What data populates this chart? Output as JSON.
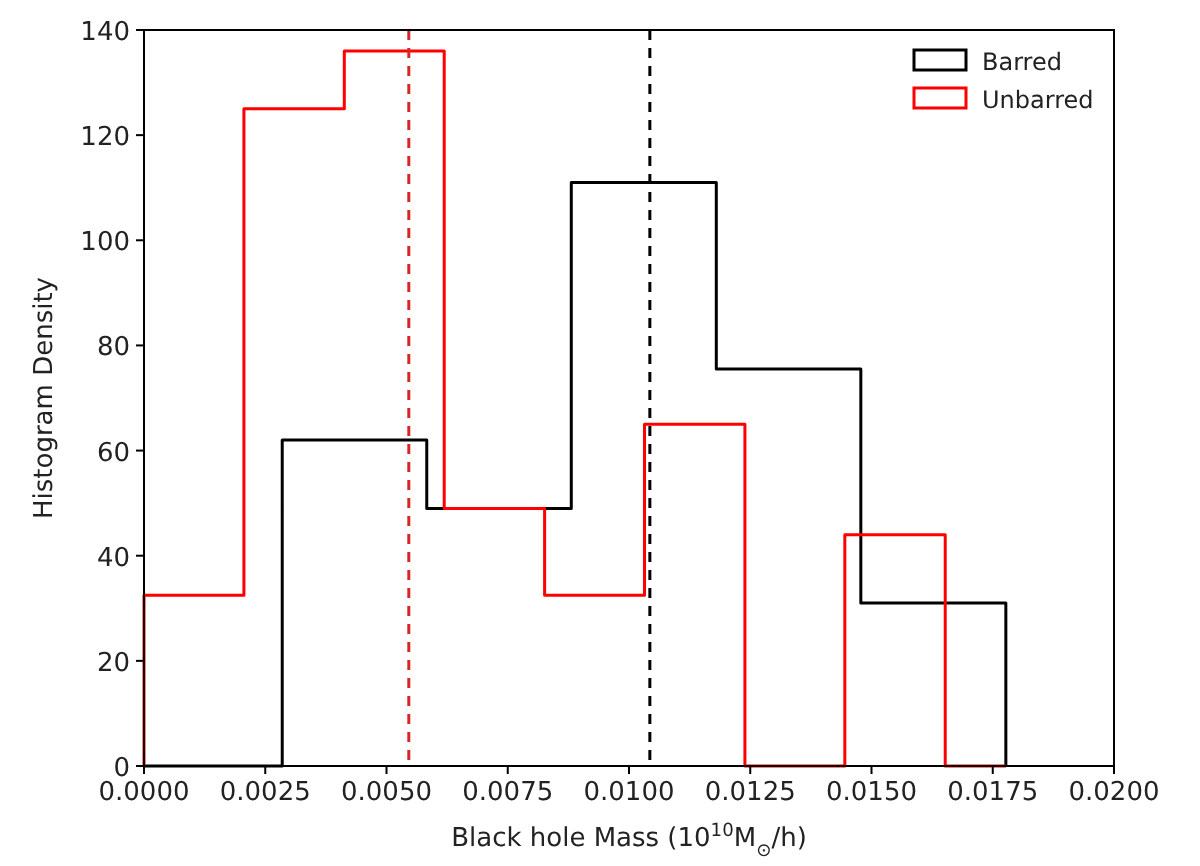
{
  "chart_data": {
    "type": "histogram",
    "xlabel": "Black hole Mass (10$^{10}$M$_{⊙}$/h)",
    "ylabel": "Histogram Density",
    "xlim": [
      0,
      0.02
    ],
    "ylim": [
      0,
      140
    ],
    "xticks": [
      {
        "value": 0,
        "label": "0.0000"
      },
      {
        "value": 0.0025,
        "label": "0.0025"
      },
      {
        "value": 0.005,
        "label": "0.0050"
      },
      {
        "value": 0.0075,
        "label": "0.0075"
      },
      {
        "value": 0.01,
        "label": "0.0100"
      },
      {
        "value": 0.0125,
        "label": "0.0125"
      },
      {
        "value": 0.015,
        "label": "0.0150"
      },
      {
        "value": 0.0175,
        "label": "0.0175"
      },
      {
        "value": 0.02,
        "label": "0.0200"
      }
    ],
    "yticks": [
      0,
      20,
      40,
      60,
      80,
      100,
      120,
      140
    ],
    "legend": "top right",
    "grid": false,
    "series": [
      {
        "name": "Barred",
        "color": "#000000",
        "values": [
          0,
          0,
          62,
          62,
          49,
          49,
          49,
          111,
          111,
          75.5,
          75.5,
          75.5,
          31,
          31
        ]
      },
      {
        "name": "Unbarred",
        "color": "#ff0000",
        "values": [
          32.5,
          125,
          125,
          136,
          136,
          49,
          32.5,
          32.5,
          65,
          65,
          0,
          44,
          44,
          0
        ]
      }
    ],
    "bins": [
      0,
      0.00206,
      0.00285,
      0.00413,
      0.00583,
      0.00619,
      0.00826,
      0.00881,
      0.01032,
      0.0118,
      0.01239,
      0.01445,
      0.01478,
      0.01652,
      0.01777
    ],
    "ref_lines": [
      {
        "axis": "x",
        "value": 0.00546,
        "color": "#d62728",
        "line_style": "dashed"
      },
      {
        "axis": "x",
        "value": 0.01043,
        "color": "#000000",
        "line_style": "dashed"
      }
    ]
  }
}
